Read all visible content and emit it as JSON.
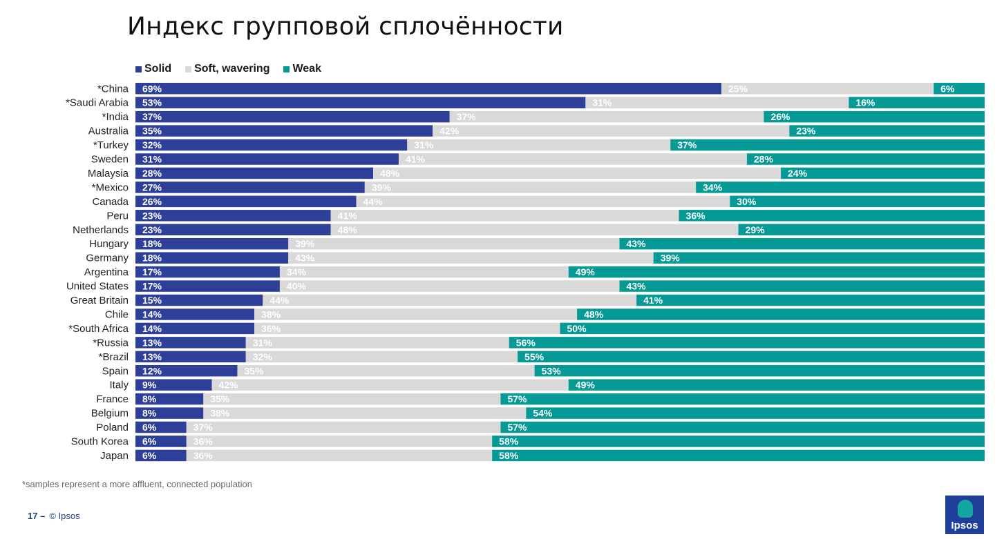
{
  "title": "Индекс групповой сплочённости",
  "legend": [
    {
      "label": "Solid",
      "color": "#2e3f99"
    },
    {
      "label": "Soft, wavering",
      "color": "#d9d9d9"
    },
    {
      "label": "Weak",
      "color": "#069a96"
    }
  ],
  "chart_data": {
    "type": "bar",
    "orientation": "horizontal",
    "stacked": true,
    "title": "Индекс групповой сплочённости",
    "categories": [
      "*China",
      "*Saudi Arabia",
      "*India",
      "Australia",
      "*Turkey",
      "Sweden",
      "Malaysia",
      "*Mexico",
      "Canada",
      "Peru",
      "Netherlands",
      "Hungary",
      "Germany",
      "Argentina",
      "United States",
      "Great Britain",
      "Chile",
      "*South Africa",
      "*Russia",
      "*Brazil",
      "Spain",
      "Italy",
      "France",
      "Belgium",
      "Poland",
      "South Korea",
      "Japan"
    ],
    "series": [
      {
        "name": "Solid",
        "color": "#2e3f99",
        "label_color": "#ffffff",
        "values": [
          69,
          53,
          37,
          35,
          32,
          31,
          28,
          27,
          26,
          23,
          23,
          18,
          18,
          17,
          17,
          15,
          14,
          14,
          13,
          13,
          12,
          9,
          8,
          8,
          6,
          6,
          6
        ]
      },
      {
        "name": "Soft, wavering",
        "color": "#d9d9d9",
        "label_color": "#ffffff",
        "values": [
          25,
          31,
          37,
          42,
          31,
          41,
          48,
          39,
          44,
          41,
          48,
          39,
          43,
          34,
          40,
          44,
          38,
          36,
          31,
          32,
          35,
          42,
          35,
          38,
          37,
          36,
          36
        ]
      },
      {
        "name": "Weak",
        "color": "#069a96",
        "label_color": "#ffffff",
        "values": [
          6,
          16,
          26,
          23,
          37,
          28,
          24,
          34,
          30,
          36,
          29,
          43,
          39,
          49,
          43,
          41,
          48,
          50,
          56,
          55,
          53,
          49,
          57,
          54,
          57,
          58,
          58
        ]
      }
    ],
    "value_suffix": "%",
    "xlim": [
      0,
      100
    ],
    "grid": false,
    "legend_position": "top-left"
  },
  "footnote": "*samples represent a more affluent, connected population",
  "footer": {
    "page": "17 –",
    "copyright": "© Ipsos"
  },
  "logo": {
    "text": "Ipsos"
  }
}
